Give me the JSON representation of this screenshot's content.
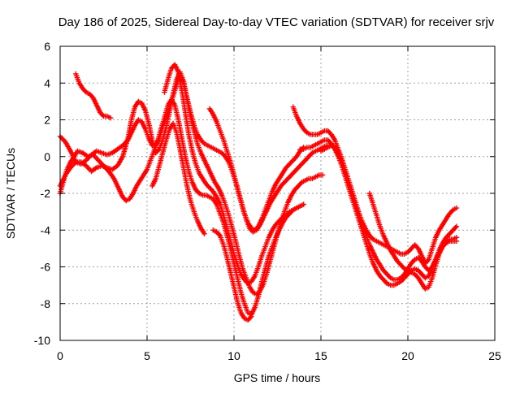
{
  "chart_data": {
    "type": "scatter",
    "title": "Day 186 of 2025, Sidereal Day-to-day VTEC variation (SDTVAR) for receiver srjv",
    "xlabel": "GPS time / hours",
    "ylabel": "SDTVAR / TECUs",
    "xlim": [
      0,
      25
    ],
    "ylim": [
      -10,
      6
    ],
    "x_ticks": [
      0,
      5,
      10,
      15,
      20,
      25
    ],
    "y_ticks": [
      -10,
      -8,
      -6,
      -4,
      -2,
      0,
      2,
      4,
      6
    ],
    "grid": true,
    "marker": "+",
    "color": "#ff0000",
    "series": [
      {
        "x": [
          0.0,
          0.2,
          0.4,
          0.6,
          0.8,
          1.0,
          1.3,
          1.6,
          1.9,
          2.2,
          2.5,
          2.8,
          3.1,
          3.4,
          3.6,
          3.8,
          4.0,
          4.2,
          4.4,
          4.6,
          4.8,
          5.0,
          5.2,
          5.4,
          5.6,
          5.8,
          6.0,
          6.2,
          6.4,
          6.6,
          6.8,
          7.0,
          7.2,
          7.4,
          7.6,
          7.8,
          8.0,
          8.2,
          8.4,
          8.6,
          8.8,
          9.0,
          9.2,
          9.4,
          9.6,
          9.8,
          10.0,
          10.2,
          10.4,
          10.6,
          10.8,
          11.0,
          11.2,
          11.4,
          11.6,
          11.8,
          12.0,
          12.2,
          12.4,
          12.6,
          12.8,
          13.0,
          13.2,
          13.4,
          13.6,
          13.8,
          14.0
        ],
        "y": [
          -2.0,
          -1.3,
          -0.7,
          -0.3,
          0.0,
          0.3,
          0.2,
          0.0,
          0.1,
          -0.2,
          -0.5,
          -0.8,
          -1.2,
          -1.8,
          -2.2,
          -2.4,
          -2.3,
          -2.0,
          -1.6,
          -1.3,
          -1.0,
          -0.7,
          -0.2,
          0.3,
          0.8,
          1.5,
          2.1,
          2.8,
          3.1,
          2.8,
          2.0,
          1.0,
          0.0,
          -0.8,
          -1.4,
          -1.8,
          -2.0,
          -2.1,
          -2.1,
          -2.2,
          -2.3,
          -2.6,
          -3.1,
          -3.6,
          -4.3,
          -5.0,
          -5.8,
          -6.6,
          -7.4,
          -8.0,
          -8.5,
          -8.6,
          -8.2,
          -7.6,
          -6.8,
          -6.1,
          -5.4,
          -4.9,
          -4.4,
          -4.0,
          -3.6,
          -3.3,
          -3.1,
          -2.9,
          -2.8,
          -2.7,
          -2.6
        ]
      },
      {
        "x": [
          0.0,
          0.3,
          0.6,
          0.9,
          1.2,
          1.5,
          1.8,
          2.1,
          2.4,
          2.7,
          3.0,
          3.3,
          3.6,
          3.9,
          4.1,
          4.3,
          4.5,
          4.7,
          4.9,
          5.1,
          5.3,
          5.5,
          5.7,
          5.9,
          6.1,
          6.3,
          6.5,
          6.7,
          6.9,
          7.1,
          7.3,
          7.5,
          7.7,
          7.9,
          8.1,
          8.3,
          8.5,
          8.7,
          8.9,
          9.1,
          9.3,
          9.5,
          9.7,
          9.9,
          10.1,
          10.3,
          10.5,
          10.7,
          10.9,
          11.1,
          11.3,
          11.5,
          11.7,
          11.9,
          12.1,
          12.3,
          12.5,
          12.7,
          12.9,
          13.1,
          13.3,
          13.5,
          13.7,
          13.9,
          14.1,
          14.3,
          14.5,
          14.7,
          14.9,
          15.1
        ],
        "y": [
          -1.6,
          -1.0,
          -0.6,
          -0.3,
          -0.3,
          -0.5,
          -0.8,
          -0.6,
          -0.5,
          -0.6,
          -0.7,
          -0.5,
          0.0,
          1.0,
          2.0,
          2.7,
          3.0,
          2.9,
          2.5,
          1.8,
          0.9,
          0.2,
          0.4,
          0.9,
          1.6,
          2.5,
          3.4,
          4.2,
          4.6,
          4.1,
          3.1,
          2.2,
          1.4,
          0.7,
          0.2,
          -0.2,
          -0.6,
          -1.0,
          -1.4,
          -1.7,
          -2.1,
          -2.6,
          -3.2,
          -3.9,
          -4.6,
          -5.4,
          -6.1,
          -6.6,
          -7.1,
          -7.4,
          -7.5,
          -7.3,
          -6.9,
          -6.3,
          -5.6,
          -4.9,
          -4.2,
          -3.6,
          -3.0,
          -2.5,
          -2.1,
          -1.8,
          -1.6,
          -1.4,
          -1.3,
          -1.2,
          -1.2,
          -1.1,
          -1.0,
          -1.0
        ]
      },
      {
        "x": [
          0.0,
          0.3,
          0.6,
          0.9,
          1.2,
          1.5,
          1.8,
          2.1,
          2.4,
          2.7,
          3.0,
          3.3,
          3.6,
          3.9,
          4.1,
          4.3,
          4.5,
          4.7,
          4.9,
          5.1,
          5.3,
          5.5,
          5.7,
          5.9,
          6.1,
          6.3,
          6.5,
          6.7,
          6.9,
          7.1,
          7.3,
          7.5,
          7.7,
          7.9,
          8.1,
          8.3,
          8.5,
          8.7,
          8.9,
          9.1,
          9.3,
          9.5,
          9.7,
          9.9,
          10.1,
          10.3,
          10.5,
          10.7,
          10.9,
          11.1,
          11.3,
          11.5,
          11.7,
          11.9,
          12.1,
          12.3,
          12.5,
          12.7,
          12.9,
          13.1,
          13.3,
          13.5,
          13.7,
          13.9,
          14.1,
          14.3,
          14.5,
          14.7,
          14.9,
          15.1,
          15.3,
          15.5,
          15.7
        ],
        "y": [
          1.1,
          0.8,
          0.3,
          -0.3,
          -0.4,
          -0.2,
          0.1,
          0.3,
          0.2,
          0.1,
          0.2,
          0.4,
          0.6,
          0.9,
          1.3,
          1.7,
          2.0,
          1.9,
          1.5,
          1.0,
          0.6,
          0.6,
          1.0,
          1.6,
          2.1,
          2.7,
          3.3,
          3.9,
          4.4,
          4.0,
          3.2,
          2.4,
          1.7,
          1.2,
          0.9,
          0.7,
          0.6,
          0.5,
          0.4,
          0.3,
          0.2,
          0.0,
          -0.3,
          -0.8,
          -1.4,
          -2.1,
          -2.8,
          -3.4,
          -3.9,
          -4.1,
          -4.0,
          -3.7,
          -3.3,
          -2.9,
          -2.5,
          -2.2,
          -1.9,
          -1.6,
          -1.4,
          -1.2,
          -1.0,
          -0.8,
          -0.6,
          -0.4,
          -0.2,
          0.0,
          0.2,
          0.3,
          0.4,
          0.5,
          0.6,
          0.6,
          0.6
        ]
      },
      {
        "x": [
          6.0,
          6.2,
          6.4,
          6.6,
          6.8,
          7.0,
          7.2,
          7.4,
          7.6,
          7.8,
          8.0,
          8.2,
          8.4,
          8.6,
          8.8,
          9.0,
          9.2,
          9.4,
          9.6,
          9.8,
          10.0,
          10.2,
          10.4,
          10.6,
          10.8,
          11.0,
          11.2,
          11.4,
          11.6,
          11.8,
          12.0,
          12.2,
          12.4,
          12.6,
          12.8,
          13.0,
          13.2,
          13.4,
          13.6,
          13.8,
          14.0
        ],
        "y": [
          3.5,
          4.2,
          4.8,
          5.0,
          4.6,
          3.6,
          2.4,
          1.2,
          0.3,
          -0.4,
          -0.9,
          -1.2,
          -1.5,
          -1.7,
          -1.9,
          -2.2,
          -2.6,
          -3.2,
          -3.9,
          -4.6,
          -5.3,
          -5.9,
          -6.4,
          -6.7,
          -6.9,
          -6.8,
          -6.5,
          -6.0,
          -5.4,
          -4.9,
          -4.4,
          -4.0,
          -3.7,
          -3.5,
          -3.3,
          -3.2,
          -3.0,
          -2.9,
          -2.8,
          -2.7,
          -2.6
        ]
      },
      {
        "x": [
          0.9,
          1.1,
          1.3,
          1.5,
          1.7,
          1.9,
          2.1,
          2.3,
          2.5,
          2.7,
          2.9
        ],
        "y": [
          4.5,
          4.0,
          3.7,
          3.5,
          3.4,
          3.2,
          2.8,
          2.4,
          2.2,
          2.2,
          2.1
        ]
      },
      {
        "x": [
          5.3,
          5.5,
          5.7,
          5.9,
          6.1,
          6.3,
          6.5,
          6.7,
          6.9,
          7.1,
          7.3,
          7.5,
          7.7,
          7.9,
          8.1,
          8.3
        ],
        "y": [
          -1.6,
          -1.2,
          -0.5,
          0.2,
          0.9,
          1.5,
          1.8,
          1.3,
          0.4,
          -0.6,
          -1.6,
          -2.4,
          -3.0,
          -3.5,
          -3.9,
          -4.2
        ]
      },
      {
        "x": [
          8.6,
          8.8,
          9.0,
          9.2,
          9.4,
          9.6,
          9.8,
          10.0,
          10.2,
          10.4,
          10.6,
          10.8,
          11.0,
          11.2,
          11.4,
          11.6,
          11.8,
          12.0,
          12.2,
          12.4,
          12.6,
          12.8,
          13.0,
          13.2,
          13.4,
          13.6,
          13.8,
          14.0
        ],
        "y": [
          2.6,
          2.3,
          1.9,
          1.4,
          0.9,
          0.3,
          -0.3,
          -1.0,
          -1.7,
          -2.4,
          -3.1,
          -3.6,
          -3.9,
          -4.0,
          -3.8,
          -3.4,
          -2.9,
          -2.4,
          -1.9,
          -1.5,
          -1.2,
          -0.9,
          -0.6,
          -0.4,
          -0.2,
          0.0,
          0.3,
          0.5
        ]
      },
      {
        "x": [
          8.8,
          9.0,
          9.2,
          9.4,
          9.6,
          9.8,
          10.0,
          10.2,
          10.4,
          10.6,
          10.8,
          11.0
        ],
        "y": [
          -4.0,
          -4.1,
          -4.3,
          -4.8,
          -5.5,
          -6.3,
          -7.1,
          -7.9,
          -8.5,
          -8.8,
          -8.9,
          -8.7
        ]
      },
      {
        "x": [
          13.4,
          13.6,
          13.8,
          14.0,
          14.2,
          14.4,
          14.6,
          14.8,
          15.0,
          15.2,
          15.4,
          15.6,
          15.8,
          16.0,
          16.2,
          16.4,
          16.6,
          16.8,
          17.0,
          17.2,
          17.4,
          17.6,
          17.8,
          18.0,
          18.2,
          18.4,
          18.6,
          18.8,
          19.0,
          19.2,
          19.4,
          19.6,
          19.8,
          20.0,
          20.2,
          20.4,
          20.6,
          20.8,
          21.0,
          21.2,
          21.4,
          21.6,
          21.8,
          22.0,
          22.2,
          22.4,
          22.6,
          22.8
        ],
        "y": [
          2.7,
          2.2,
          1.8,
          1.5,
          1.3,
          1.2,
          1.2,
          1.2,
          1.3,
          1.4,
          1.4,
          1.2,
          0.9,
          0.4,
          -0.1,
          -0.7,
          -1.3,
          -1.9,
          -2.5,
          -3.1,
          -3.6,
          -4.0,
          -4.3,
          -4.5,
          -4.6,
          -4.7,
          -4.8,
          -4.9,
          -5.0,
          -5.1,
          -5.2,
          -5.3,
          -5.3,
          -5.2,
          -5.0,
          -4.8,
          -5.0,
          -5.4,
          -5.8,
          -5.6,
          -5.0,
          -4.4,
          -4.0,
          -3.7,
          -3.4,
          -3.1,
          -2.9,
          -2.8
        ]
      },
      {
        "x": [
          13.8,
          14.0,
          14.2,
          14.4,
          14.6,
          14.8,
          15.0,
          15.2,
          15.4,
          15.6,
          15.8,
          16.0,
          16.2,
          16.4,
          16.6,
          16.8,
          17.0,
          17.2,
          17.4,
          17.6,
          17.8,
          18.0,
          18.2,
          18.4,
          18.6,
          18.8,
          19.0,
          19.2,
          19.4,
          19.6,
          19.8,
          20.0,
          20.2,
          20.4,
          20.6,
          20.8,
          21.0,
          21.2,
          21.4,
          21.6,
          21.8,
          22.0,
          22.2,
          22.4,
          22.6,
          22.8
        ],
        "y": [
          0.4,
          0.4,
          0.5,
          0.5,
          0.6,
          0.7,
          0.8,
          0.9,
          0.9,
          0.7,
          0.4,
          0.0,
          -0.5,
          -1.1,
          -1.7,
          -2.3,
          -2.9,
          -3.5,
          -4.1,
          -4.7,
          -5.3,
          -5.8,
          -6.2,
          -6.5,
          -6.7,
          -6.9,
          -7.0,
          -7.0,
          -6.9,
          -6.8,
          -6.6,
          -6.4,
          -6.2,
          -6.1,
          -6.2,
          -6.4,
          -6.6,
          -6.5,
          -6.1,
          -5.6,
          -5.1,
          -4.7,
          -4.4,
          -4.2,
          -4.0,
          -3.8
        ]
      },
      {
        "x": [
          15.0,
          15.2,
          15.4,
          15.6,
          15.8,
          16.0,
          16.2,
          16.4,
          16.6,
          16.8,
          17.0,
          17.2,
          17.4,
          17.6,
          17.8,
          18.0,
          18.2,
          18.4,
          18.6,
          18.8,
          19.0,
          19.2,
          19.4,
          19.6,
          19.8,
          20.0,
          20.2,
          20.4,
          20.6,
          20.8,
          21.0,
          21.2,
          21.4,
          21.6,
          21.8,
          22.0,
          22.2,
          22.4,
          22.6,
          22.8
        ],
        "y": [
          0.3,
          0.4,
          0.5,
          0.6,
          0.5,
          0.2,
          -0.3,
          -0.9,
          -1.5,
          -2.1,
          -2.7,
          -3.3,
          -3.8,
          -4.3,
          -4.8,
          -5.2,
          -5.6,
          -5.9,
          -6.2,
          -6.4,
          -6.6,
          -6.7,
          -6.7,
          -6.6,
          -6.4,
          -6.1,
          -5.8,
          -5.6,
          -5.5,
          -5.7,
          -6.0,
          -6.2,
          -6.0,
          -5.6,
          -5.2,
          -4.9,
          -4.7,
          -4.6,
          -4.6,
          -4.6
        ]
      },
      {
        "x": [
          17.8,
          18.0,
          18.2,
          18.4,
          18.6,
          18.8,
          19.0,
          19.2,
          19.4,
          19.6,
          19.8,
          20.0,
          20.2,
          20.4,
          20.6,
          20.8,
          21.0,
          21.2,
          21.4,
          21.6,
          21.8,
          22.0,
          22.2,
          22.4,
          22.6,
          22.8
        ],
        "y": [
          -2.0,
          -2.6,
          -3.2,
          -3.8,
          -4.3,
          -4.7,
          -5.1,
          -5.4,
          -5.7,
          -5.9,
          -6.1,
          -6.2,
          -6.3,
          -6.4,
          -6.6,
          -6.9,
          -7.2,
          -7.1,
          -6.6,
          -5.9,
          -5.3,
          -4.9,
          -4.6,
          -4.5,
          -4.5,
          -4.4
        ]
      }
    ]
  }
}
